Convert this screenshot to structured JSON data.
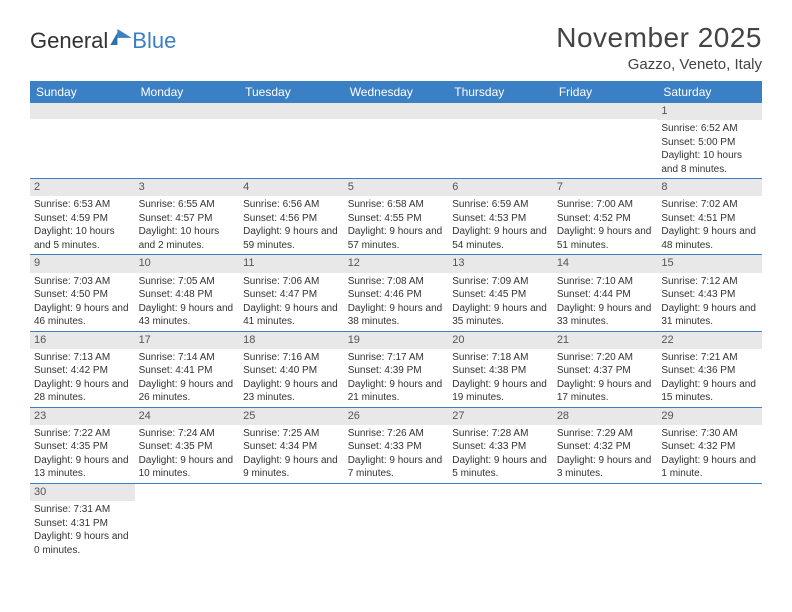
{
  "logo": {
    "text_general": "General",
    "text_blue": "Blue"
  },
  "header": {
    "month_title": "November 2025",
    "location": "Gazzo, Veneto, Italy"
  },
  "calendar": {
    "type": "table",
    "header_bg": "#3b7fc4",
    "header_text_color": "#ffffff",
    "row_divider_color": "#3b7fc4",
    "daynum_bg": "#e8e8e8",
    "text_color": "#333333",
    "fontsize_header": 12,
    "fontsize_daynum": 11,
    "fontsize_cell": 10,
    "columns": [
      "Sunday",
      "Monday",
      "Tuesday",
      "Wednesday",
      "Thursday",
      "Friday",
      "Saturday"
    ],
    "weeks": [
      [
        null,
        null,
        null,
        null,
        null,
        null,
        {
          "n": "1",
          "sr": "6:52 AM",
          "ss": "5:00 PM",
          "dl": "10 hours and 8 minutes."
        }
      ],
      [
        {
          "n": "2",
          "sr": "6:53 AM",
          "ss": "4:59 PM",
          "dl": "10 hours and 5 minutes."
        },
        {
          "n": "3",
          "sr": "6:55 AM",
          "ss": "4:57 PM",
          "dl": "10 hours and 2 minutes."
        },
        {
          "n": "4",
          "sr": "6:56 AM",
          "ss": "4:56 PM",
          "dl": "9 hours and 59 minutes."
        },
        {
          "n": "5",
          "sr": "6:58 AM",
          "ss": "4:55 PM",
          "dl": "9 hours and 57 minutes."
        },
        {
          "n": "6",
          "sr": "6:59 AM",
          "ss": "4:53 PM",
          "dl": "9 hours and 54 minutes."
        },
        {
          "n": "7",
          "sr": "7:00 AM",
          "ss": "4:52 PM",
          "dl": "9 hours and 51 minutes."
        },
        {
          "n": "8",
          "sr": "7:02 AM",
          "ss": "4:51 PM",
          "dl": "9 hours and 48 minutes."
        }
      ],
      [
        {
          "n": "9",
          "sr": "7:03 AM",
          "ss": "4:50 PM",
          "dl": "9 hours and 46 minutes."
        },
        {
          "n": "10",
          "sr": "7:05 AM",
          "ss": "4:48 PM",
          "dl": "9 hours and 43 minutes."
        },
        {
          "n": "11",
          "sr": "7:06 AM",
          "ss": "4:47 PM",
          "dl": "9 hours and 41 minutes."
        },
        {
          "n": "12",
          "sr": "7:08 AM",
          "ss": "4:46 PM",
          "dl": "9 hours and 38 minutes."
        },
        {
          "n": "13",
          "sr": "7:09 AM",
          "ss": "4:45 PM",
          "dl": "9 hours and 35 minutes."
        },
        {
          "n": "14",
          "sr": "7:10 AM",
          "ss": "4:44 PM",
          "dl": "9 hours and 33 minutes."
        },
        {
          "n": "15",
          "sr": "7:12 AM",
          "ss": "4:43 PM",
          "dl": "9 hours and 31 minutes."
        }
      ],
      [
        {
          "n": "16",
          "sr": "7:13 AM",
          "ss": "4:42 PM",
          "dl": "9 hours and 28 minutes."
        },
        {
          "n": "17",
          "sr": "7:14 AM",
          "ss": "4:41 PM",
          "dl": "9 hours and 26 minutes."
        },
        {
          "n": "18",
          "sr": "7:16 AM",
          "ss": "4:40 PM",
          "dl": "9 hours and 23 minutes."
        },
        {
          "n": "19",
          "sr": "7:17 AM",
          "ss": "4:39 PM",
          "dl": "9 hours and 21 minutes."
        },
        {
          "n": "20",
          "sr": "7:18 AM",
          "ss": "4:38 PM",
          "dl": "9 hours and 19 minutes."
        },
        {
          "n": "21",
          "sr": "7:20 AM",
          "ss": "4:37 PM",
          "dl": "9 hours and 17 minutes."
        },
        {
          "n": "22",
          "sr": "7:21 AM",
          "ss": "4:36 PM",
          "dl": "9 hours and 15 minutes."
        }
      ],
      [
        {
          "n": "23",
          "sr": "7:22 AM",
          "ss": "4:35 PM",
          "dl": "9 hours and 13 minutes."
        },
        {
          "n": "24",
          "sr": "7:24 AM",
          "ss": "4:35 PM",
          "dl": "9 hours and 10 minutes."
        },
        {
          "n": "25",
          "sr": "7:25 AM",
          "ss": "4:34 PM",
          "dl": "9 hours and 9 minutes."
        },
        {
          "n": "26",
          "sr": "7:26 AM",
          "ss": "4:33 PM",
          "dl": "9 hours and 7 minutes."
        },
        {
          "n": "27",
          "sr": "7:28 AM",
          "ss": "4:33 PM",
          "dl": "9 hours and 5 minutes."
        },
        {
          "n": "28",
          "sr": "7:29 AM",
          "ss": "4:32 PM",
          "dl": "9 hours and 3 minutes."
        },
        {
          "n": "29",
          "sr": "7:30 AM",
          "ss": "4:32 PM",
          "dl": "9 hours and 1 minute."
        }
      ],
      [
        {
          "n": "30",
          "sr": "7:31 AM",
          "ss": "4:31 PM",
          "dl": "9 hours and 0 minutes."
        },
        null,
        null,
        null,
        null,
        null,
        null
      ]
    ]
  },
  "labels": {
    "sunrise_prefix": "Sunrise: ",
    "sunset_prefix": "Sunset: ",
    "daylight_prefix": "Daylight: "
  }
}
